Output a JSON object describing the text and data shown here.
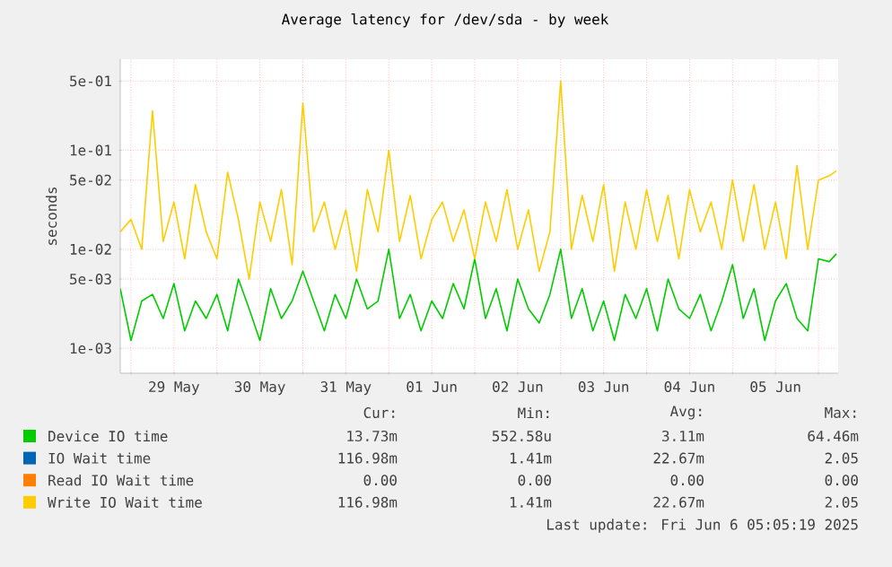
{
  "chart_data": {
    "type": "line",
    "title": "Average latency for /dev/sda - by week",
    "ylabel": "seconds",
    "log": true,
    "grid": true,
    "legend": "bottom",
    "marker": "none",
    "line_style": "solid",
    "xlim": [
      "2025-05-28T21:00",
      "2025-06-06T05:30"
    ],
    "xticks": [
      {
        "value": "2025-05-29T00:00",
        "label": null
      },
      {
        "value": "2025-05-29T12:00",
        "label": "29 May"
      },
      {
        "value": "2025-05-30T00:00",
        "label": null
      },
      {
        "value": "2025-05-30T12:00",
        "label": "30 May"
      },
      {
        "value": "2025-05-31T00:00",
        "label": null
      },
      {
        "value": "2025-05-31T12:00",
        "label": "31 May"
      },
      {
        "value": "2025-06-01T00:00",
        "label": null
      },
      {
        "value": "2025-06-01T12:00",
        "label": "01 Jun"
      },
      {
        "value": "2025-06-02T00:00",
        "label": null
      },
      {
        "value": "2025-06-02T12:00",
        "label": "02 Jun"
      },
      {
        "value": "2025-06-03T00:00",
        "label": null
      },
      {
        "value": "2025-06-03T12:00",
        "label": "03 Jun"
      },
      {
        "value": "2025-06-04T00:00",
        "label": null
      },
      {
        "value": "2025-06-04T12:00",
        "label": "04 Jun"
      },
      {
        "value": "2025-06-05T00:00",
        "label": null
      },
      {
        "value": "2025-06-05T12:00",
        "label": "05 Jun"
      },
      {
        "value": "2025-06-06T00:00",
        "label": null
      }
    ],
    "ylim": [
      0.00056,
      0.83
    ],
    "yticks": [
      {
        "value": 0.001,
        "label": "1e-03"
      },
      {
        "value": 0.005,
        "label": "5e-03"
      },
      {
        "value": 0.01,
        "label": "1e-02"
      },
      {
        "value": 0.05,
        "label": "5e-02"
      },
      {
        "value": 0.1,
        "label": "1e-01"
      },
      {
        "value": 0.5,
        "label": "5e-01"
      }
    ],
    "x": [
      "2025-05-28T21:00",
      "2025-05-29T00:00",
      "2025-05-29T03:00",
      "2025-05-29T06:00",
      "2025-05-29T09:00",
      "2025-05-29T12:00",
      "2025-05-29T15:00",
      "2025-05-29T18:00",
      "2025-05-29T21:00",
      "2025-05-30T00:00",
      "2025-05-30T03:00",
      "2025-05-30T06:00",
      "2025-05-30T09:00",
      "2025-05-30T12:00",
      "2025-05-30T15:00",
      "2025-05-30T18:00",
      "2025-05-30T21:00",
      "2025-05-31T00:00",
      "2025-05-31T03:00",
      "2025-05-31T06:00",
      "2025-05-31T09:00",
      "2025-05-31T12:00",
      "2025-05-31T15:00",
      "2025-05-31T18:00",
      "2025-05-31T21:00",
      "2025-06-01T00:00",
      "2025-06-01T03:00",
      "2025-06-01T06:00",
      "2025-06-01T09:00",
      "2025-06-01T12:00",
      "2025-06-01T15:00",
      "2025-06-01T18:00",
      "2025-06-01T21:00",
      "2025-06-02T00:00",
      "2025-06-02T03:00",
      "2025-06-02T06:00",
      "2025-06-02T09:00",
      "2025-06-02T12:00",
      "2025-06-02T15:00",
      "2025-06-02T18:00",
      "2025-06-02T21:00",
      "2025-06-03T00:00",
      "2025-06-03T03:00",
      "2025-06-03T06:00",
      "2025-06-03T09:00",
      "2025-06-03T12:00",
      "2025-06-03T15:00",
      "2025-06-03T18:00",
      "2025-06-03T21:00",
      "2025-06-04T00:00",
      "2025-06-04T03:00",
      "2025-06-04T06:00",
      "2025-06-04T09:00",
      "2025-06-04T12:00",
      "2025-06-04T15:00",
      "2025-06-04T18:00",
      "2025-06-04T21:00",
      "2025-06-05T00:00",
      "2025-06-05T03:00",
      "2025-06-05T06:00",
      "2025-06-05T09:00",
      "2025-06-05T12:00",
      "2025-06-05T15:00",
      "2025-06-05T18:00",
      "2025-06-05T21:00",
      "2025-06-06T00:00",
      "2025-06-06T03:00",
      "2025-06-06T05:00"
    ],
    "series": [
      {
        "name": "Device IO time",
        "color": "#00cc00",
        "values": [
          0.004,
          0.0012,
          0.003,
          0.0035,
          0.002,
          0.0045,
          0.0015,
          0.003,
          0.002,
          0.0035,
          0.0015,
          0.005,
          0.0025,
          0.0012,
          0.004,
          0.002,
          0.003,
          0.006,
          0.003,
          0.0015,
          0.0035,
          0.002,
          0.005,
          0.0025,
          0.003,
          0.01,
          0.002,
          0.0035,
          0.0015,
          0.003,
          0.002,
          0.0045,
          0.0025,
          0.008,
          0.002,
          0.004,
          0.0015,
          0.005,
          0.0025,
          0.0018,
          0.0035,
          0.01,
          0.002,
          0.004,
          0.0015,
          0.003,
          0.0012,
          0.0035,
          0.002,
          0.004,
          0.0015,
          0.005,
          0.0025,
          0.002,
          0.0035,
          0.0015,
          0.003,
          0.007,
          0.002,
          0.004,
          0.0012,
          0.003,
          0.0045,
          0.002,
          0.0015,
          0.008,
          0.0075,
          0.009
        ]
      },
      {
        "name": "IO Wait time",
        "color": "#0066b3",
        "values": [
          null,
          null,
          null,
          null,
          null,
          null,
          null,
          null,
          null,
          null,
          null,
          null,
          null,
          null,
          null,
          null,
          null,
          null,
          null,
          null,
          null,
          null,
          null,
          null,
          null,
          null,
          null,
          null,
          null,
          null,
          null,
          null,
          null,
          null,
          null,
          null,
          null,
          null,
          null,
          null,
          null,
          null,
          null,
          null,
          null,
          null,
          null,
          null,
          null,
          null,
          null,
          null,
          null,
          null,
          null,
          null,
          null,
          null,
          null,
          null,
          null,
          null,
          null,
          null,
          null,
          null,
          null,
          null
        ]
      },
      {
        "name": "Read IO Wait time",
        "color": "#ff8000",
        "values": [
          null,
          null,
          null,
          null,
          null,
          null,
          null,
          null,
          null,
          null,
          null,
          null,
          null,
          null,
          null,
          null,
          null,
          null,
          null,
          null,
          null,
          null,
          null,
          null,
          null,
          null,
          null,
          null,
          null,
          null,
          null,
          null,
          null,
          null,
          null,
          null,
          null,
          null,
          null,
          null,
          null,
          null,
          null,
          null,
          null,
          null,
          null,
          null,
          null,
          null,
          null,
          null,
          null,
          null,
          null,
          null,
          null,
          null,
          null,
          null,
          null,
          null,
          null,
          null,
          null,
          null,
          null,
          null
        ]
      },
      {
        "name": "Write IO Wait time",
        "color": "#ffcc00",
        "values": [
          0.015,
          0.02,
          0.01,
          0.25,
          0.012,
          0.03,
          0.008,
          0.045,
          0.015,
          0.008,
          0.06,
          0.02,
          0.005,
          0.03,
          0.012,
          0.04,
          0.007,
          0.3,
          0.015,
          0.03,
          0.01,
          0.025,
          0.006,
          0.04,
          0.015,
          0.1,
          0.012,
          0.035,
          0.008,
          0.02,
          0.03,
          0.012,
          0.025,
          0.008,
          0.03,
          0.012,
          0.04,
          0.01,
          0.025,
          0.006,
          0.015,
          0.5,
          0.01,
          0.035,
          0.012,
          0.045,
          0.006,
          0.03,
          0.01,
          0.04,
          0.012,
          0.035,
          0.008,
          0.04,
          0.015,
          0.03,
          0.01,
          0.05,
          0.012,
          0.045,
          0.01,
          0.03,
          0.008,
          0.07,
          0.01,
          0.05,
          0.055,
          0.062
        ]
      }
    ],
    "annotations": [
      "Cur:",
      "Min:",
      "Avg:",
      "Max:",
      "13.73m",
      "552.58u",
      "3.11m",
      "64.46m",
      "116.98m",
      "1.41m",
      "22.67m",
      "2.05",
      "0.00",
      "0.00",
      "0.00",
      "0.00",
      "116.98m",
      "1.41m",
      "22.67m",
      "2.05",
      "Last update: Fri Jun  6 05:05:19 2025"
    ]
  }
}
